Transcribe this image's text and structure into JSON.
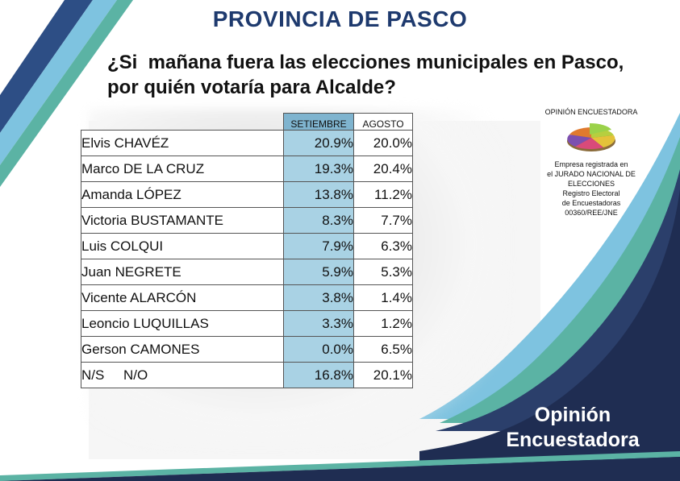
{
  "header": {
    "title": "PROVINCIA DE PASCO",
    "question_line1": "¿Si  mañana fuera las elecciones municipales en Pasco,",
    "question_line2": "por quién votaría para Alcalde?"
  },
  "logo": {
    "title": "OPINIÓN ENCUESTADORA",
    "lines": [
      "Empresa registrada en",
      "el JURADO NACIONAL DE",
      "ELECCIONES",
      "Registro Electoral",
      "de Encuestadoras",
      "00360/REE/JNE"
    ]
  },
  "brand": {
    "line1": "Opinión",
    "line2": "Encuestadora"
  },
  "colors": {
    "navy": "#1e3a6e",
    "setiembre_fill": "#a9d2e4",
    "setiembre_header": "#7fb4cf",
    "teal_band": "#5bb3a4",
    "light_blue_band": "#7ec3e0"
  },
  "chart_data": {
    "type": "table",
    "columns": [
      "SETIEMBRE",
      "AGOSTO"
    ],
    "rows": [
      {
        "name": "Elvis CHAVÉZ",
        "setiembre": "20.9%",
        "agosto": "20.0%"
      },
      {
        "name": "Marco DE LA CRUZ",
        "setiembre": "19.3%",
        "agosto": "20.4%"
      },
      {
        "name": "Amanda LÓPEZ",
        "setiembre": "13.8%",
        "agosto": "11.2%"
      },
      {
        "name": "Victoria BUSTAMANTE",
        "setiembre": "8.3%",
        "agosto": "7.7%"
      },
      {
        "name": "Luis COLQUI",
        "setiembre": "7.9%",
        "agosto": "6.3%"
      },
      {
        "name": "Juan NEGRETE",
        "setiembre": "5.9%",
        "agosto": "5.3%"
      },
      {
        "name": "Vicente ALARCÓN",
        "setiembre": "3.8%",
        "agosto": "1.4%"
      },
      {
        "name": "Leoncio LUQUILLAS",
        "setiembre": "3.3%",
        "agosto": "1.2%"
      },
      {
        "name": "Gerson CAMONES",
        "setiembre": "0.0%",
        "agosto": "6.5%"
      },
      {
        "name": "N/S     N/O",
        "setiembre": "16.8%",
        "agosto": "20.1%"
      }
    ]
  }
}
